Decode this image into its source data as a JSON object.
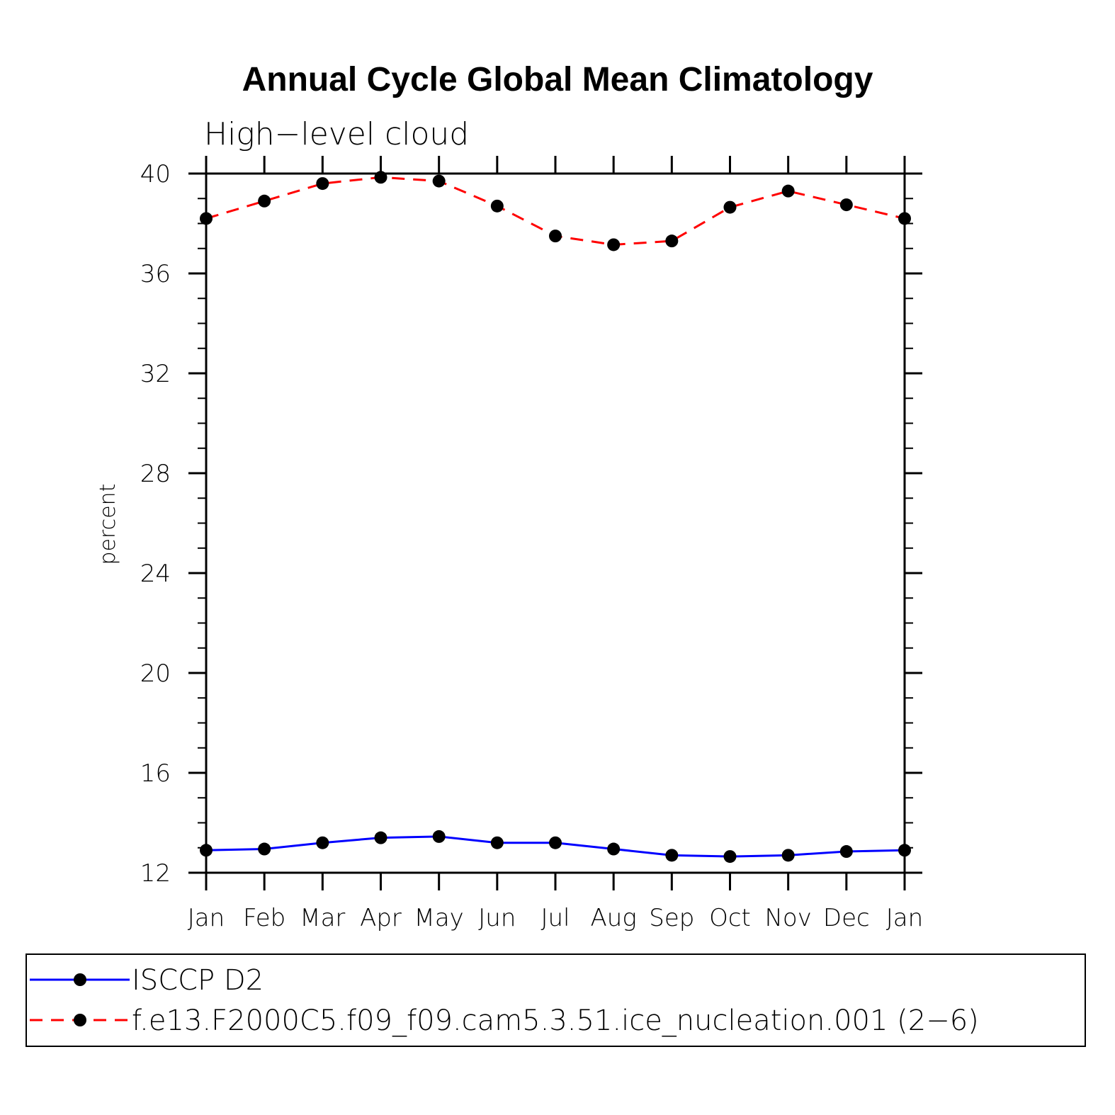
{
  "chart_data": {
    "type": "line",
    "title": "Annual Cycle Global Mean Climatology",
    "subtitle": "High−level cloud",
    "xlabel": "",
    "ylabel": "percent",
    "ylim": [
      12,
      40
    ],
    "yticks": [
      "40",
      "36",
      "32",
      "28",
      "24",
      "20",
      "16",
      "12"
    ],
    "ytick_values": [
      40,
      36,
      32,
      28,
      24,
      20,
      16,
      12
    ],
    "categories": [
      "Jan",
      "Feb",
      "Mar",
      "Apr",
      "May",
      "Jun",
      "Jul",
      "Aug",
      "Sep",
      "Oct",
      "Nov",
      "Dec",
      "Jan"
    ],
    "series": [
      {
        "name": "ISCCP D2",
        "color": "#0000ff",
        "style": "solid",
        "marker": "circle",
        "values": [
          12.9,
          12.95,
          13.2,
          13.4,
          13.45,
          13.2,
          13.2,
          12.95,
          12.7,
          12.65,
          12.7,
          12.85,
          12.9
        ]
      },
      {
        "name": "f.e13.F2000C5.f09_f09.cam5.3.51.ice_nucleation.001 (2−6)",
        "color": "#ff0000",
        "style": "dashed",
        "marker": "circle",
        "values": [
          38.2,
          38.9,
          39.6,
          39.85,
          39.7,
          38.7,
          37.5,
          37.15,
          37.3,
          38.65,
          39.3,
          38.75,
          38.2
        ]
      }
    ],
    "legend_position": "bottom"
  }
}
